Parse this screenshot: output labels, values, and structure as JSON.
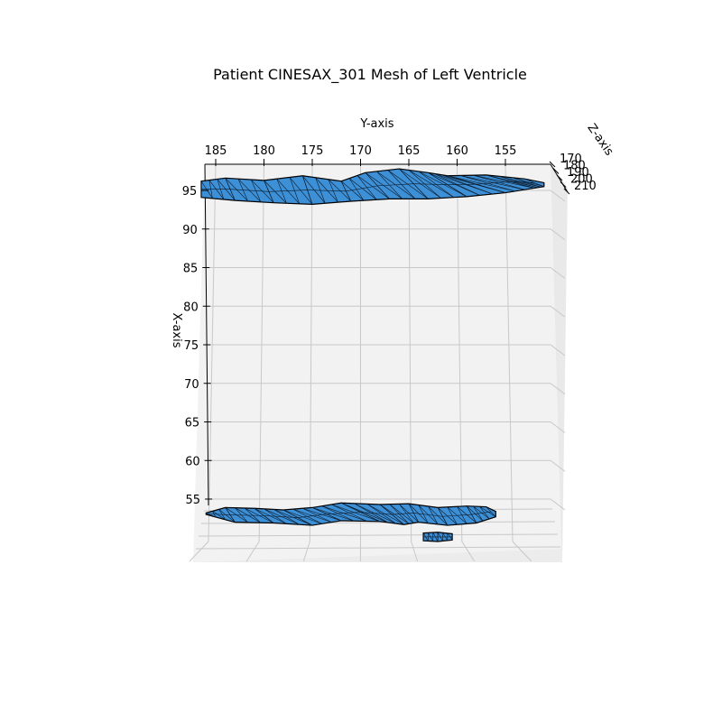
{
  "chart_data": {
    "type": "mesh3d",
    "title": "Patient CINESAX_301 Mesh of Left Ventricle",
    "xlabel": "X-axis",
    "ylabel": "Y-axis",
    "zlabel": "Z-axis",
    "y_ticks": [
      185,
      180,
      175,
      170,
      165,
      160,
      155
    ],
    "x_ticks": [
      95,
      90,
      85,
      80,
      75,
      70,
      65,
      60,
      55
    ],
    "z_ticks": [
      170,
      180,
      190,
      200,
      210
    ],
    "ylim": [
      151,
      186
    ],
    "xlim": [
      51,
      97
    ],
    "zlim": [
      170,
      210
    ],
    "grid": true,
    "mesh_color": "#3d8fd6",
    "edge_color": "#000000",
    "pane_color": "#f2f2f2",
    "mesh_parts": [
      {
        "name": "upper-band",
        "x_level": 95,
        "upper_outline": [
          [
            186.5,
            96.2
          ],
          [
            184,
            96.6
          ],
          [
            180,
            96.3
          ],
          [
            176,
            96.9
          ],
          [
            172,
            96.2
          ],
          [
            169.5,
            97.3
          ],
          [
            166,
            97.8
          ],
          [
            163,
            97.3
          ],
          [
            161,
            96.9
          ],
          [
            157,
            97.0
          ],
          [
            153,
            96.5
          ],
          [
            151,
            96.0
          ]
        ],
        "lower_outline": [
          [
            186.5,
            94.1
          ],
          [
            183,
            93.7
          ],
          [
            179,
            93.4
          ],
          [
            175,
            93.2
          ],
          [
            171,
            93.6
          ],
          [
            167,
            93.9
          ],
          [
            163,
            93.9
          ],
          [
            159,
            94.2
          ],
          [
            155,
            94.7
          ],
          [
            152,
            95.3
          ],
          [
            151,
            95.5
          ]
        ]
      },
      {
        "name": "lower-band",
        "x_level": 53,
        "upper_outline": [
          [
            186,
            53.2
          ],
          [
            184,
            53.9
          ],
          [
            181,
            53.8
          ],
          [
            178,
            53.6
          ],
          [
            175,
            53.9
          ],
          [
            172,
            54.5
          ],
          [
            168,
            54.3
          ],
          [
            165,
            54.4
          ],
          [
            162,
            53.9
          ],
          [
            159,
            54.1
          ],
          [
            157,
            54.0
          ],
          [
            156,
            53.4
          ]
        ],
        "lower_outline": [
          [
            186,
            53.0
          ],
          [
            183,
            52.0
          ],
          [
            179,
            51.9
          ],
          [
            175,
            51.6
          ],
          [
            172,
            52.2
          ],
          [
            168,
            52.1
          ],
          [
            165.5,
            51.7
          ],
          [
            164,
            52.0
          ],
          [
            161,
            51.6
          ],
          [
            158,
            51.9
          ],
          [
            156,
            52.7
          ]
        ]
      },
      {
        "name": "fragment",
        "x_level": 50,
        "upper_outline": [
          [
            163.5,
            50.6
          ],
          [
            162,
            50.7
          ],
          [
            160.5,
            50.5
          ]
        ],
        "lower_outline": [
          [
            163.5,
            49.6
          ],
          [
            162,
            49.5
          ],
          [
            160.5,
            49.7
          ]
        ]
      }
    ]
  }
}
